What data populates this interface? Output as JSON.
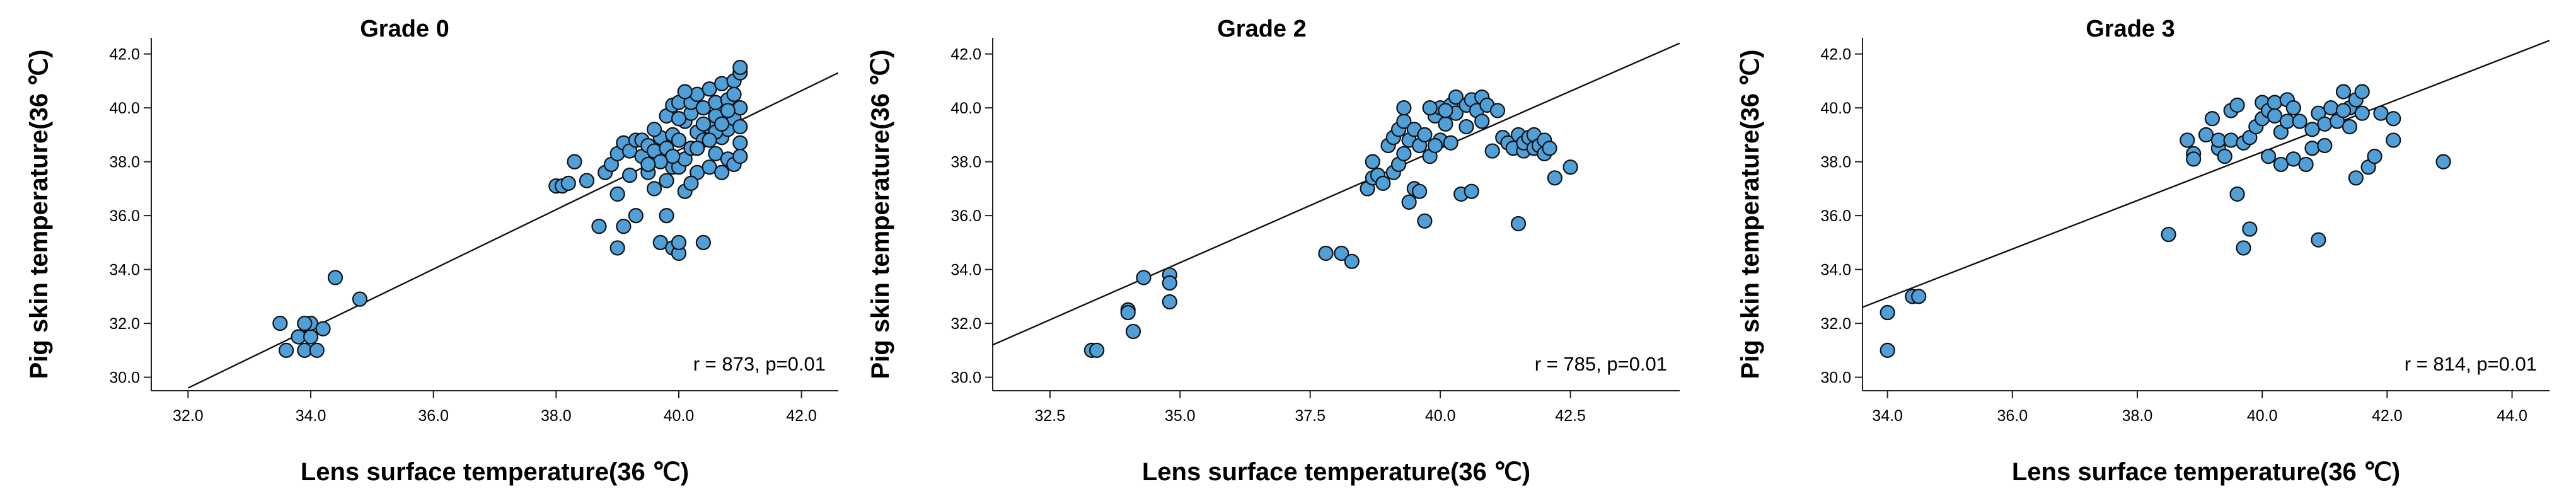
{
  "colors": {
    "marker": "#4f9fd8",
    "marker_edge": "#111111",
    "fit_line": "#111111",
    "axis": "#222222"
  },
  "chart_data": [
    {
      "type": "scatter",
      "title": "Grade 0",
      "xlabel": "Lens surface temperature(36 ℃)",
      "ylabel": "Pig skin temperature(36 ℃)",
      "xlim": [
        31.4,
        42.6
      ],
      "ylim": [
        29.5,
        42.6
      ],
      "xticks": [
        "32.0",
        "34.0",
        "36.0",
        "38.0",
        "40.0",
        "42.0"
      ],
      "yticks": [
        "30.0",
        "32.0",
        "34.0",
        "36.0",
        "38.0",
        "40.0",
        "42.0"
      ],
      "annotation": "r = 873, p=0.01",
      "fit_line": [
        [
          32.0,
          29.6
        ],
        [
          42.6,
          41.3
        ]
      ],
      "points": [
        [
          33.5,
          32.0
        ],
        [
          33.6,
          31.0
        ],
        [
          33.8,
          31.5
        ],
        [
          33.9,
          31.0
        ],
        [
          34.0,
          31.5
        ],
        [
          34.0,
          32.0
        ],
        [
          34.1,
          31.0
        ],
        [
          34.2,
          31.8
        ],
        [
          33.9,
          32.0
        ],
        [
          34.4,
          33.7
        ],
        [
          34.8,
          32.9
        ],
        [
          38.0,
          37.1
        ],
        [
          38.1,
          37.1
        ],
        [
          38.2,
          37.2
        ],
        [
          38.3,
          38.0
        ],
        [
          38.5,
          37.3
        ],
        [
          38.7,
          35.6
        ],
        [
          38.8,
          37.6
        ],
        [
          38.9,
          37.9
        ],
        [
          39.0,
          38.3
        ],
        [
          39.0,
          36.8
        ],
        [
          39.0,
          34.8
        ],
        [
          39.1,
          38.7
        ],
        [
          39.1,
          35.6
        ],
        [
          39.2,
          37.5
        ],
        [
          39.2,
          38.4
        ],
        [
          39.3,
          38.8
        ],
        [
          39.3,
          36.0
        ],
        [
          39.4,
          38.2
        ],
        [
          39.4,
          38.8
        ],
        [
          39.5,
          37.6
        ],
        [
          39.5,
          38.6
        ],
        [
          39.6,
          37.0
        ],
        [
          39.6,
          38.4
        ],
        [
          39.7,
          38.9
        ],
        [
          39.7,
          35.0
        ],
        [
          39.8,
          36.0
        ],
        [
          39.8,
          37.3
        ],
        [
          39.8,
          39.7
        ],
        [
          39.8,
          38.5
        ],
        [
          39.9,
          34.8
        ],
        [
          39.9,
          40.1
        ],
        [
          39.9,
          37.8
        ],
        [
          39.9,
          39.0
        ],
        [
          40.0,
          34.6
        ],
        [
          40.0,
          35.0
        ],
        [
          40.0,
          37.8
        ],
        [
          40.0,
          38.8
        ],
        [
          40.0,
          40.2
        ],
        [
          40.1,
          39.5
        ],
        [
          40.1,
          38.1
        ],
        [
          40.1,
          36.9
        ],
        [
          40.2,
          39.8
        ],
        [
          40.2,
          38.5
        ],
        [
          40.2,
          40.2
        ],
        [
          40.3,
          37.6
        ],
        [
          40.3,
          39.1
        ],
        [
          40.3,
          40.5
        ],
        [
          40.4,
          38.8
        ],
        [
          40.4,
          40.0
        ],
        [
          40.4,
          35.0
        ],
        [
          40.5,
          39.3
        ],
        [
          40.5,
          37.8
        ],
        [
          40.5,
          40.7
        ],
        [
          40.6,
          38.3
        ],
        [
          40.6,
          39.7
        ],
        [
          40.6,
          40.2
        ],
        [
          40.7,
          38.9
        ],
        [
          40.7,
          37.6
        ],
        [
          40.7,
          40.9
        ],
        [
          40.8,
          39.2
        ],
        [
          40.8,
          40.3
        ],
        [
          40.8,
          38.1
        ],
        [
          40.9,
          39.6
        ],
        [
          40.9,
          41.0
        ],
        [
          40.9,
          37.9
        ],
        [
          41.0,
          38.7
        ],
        [
          41.0,
          40.0
        ],
        [
          41.0,
          39.3
        ],
        [
          41.0,
          41.3
        ],
        [
          41.0,
          41.5
        ],
        [
          41.0,
          38.2
        ],
        [
          40.3,
          38.5
        ],
        [
          40.6,
          39.1
        ],
        [
          40.2,
          37.2
        ],
        [
          39.6,
          39.2
        ],
        [
          40.8,
          39.9
        ],
        [
          40.4,
          39.4
        ],
        [
          39.9,
          38.2
        ],
        [
          40.5,
          38.8
        ],
        [
          40.1,
          40.6
        ],
        [
          39.7,
          38.0
        ],
        [
          40.7,
          39.4
        ],
        [
          40.9,
          40.5
        ],
        [
          40.0,
          39.6
        ],
        [
          39.5,
          37.9
        ]
      ]
    },
    {
      "type": "scatter",
      "title": "Grade 2",
      "xlabel": "Lens surface temperature(36 ℃)",
      "ylabel": "Pig skin temperature(36 ℃)",
      "xlim": [
        31.4,
        44.6
      ],
      "ylim": [
        29.5,
        42.6
      ],
      "xticks": [
        "32.5",
        "35.0",
        "37.5",
        "40.0",
        "42.5"
      ],
      "yticks": [
        "30.0",
        "32.0",
        "34.0",
        "36.0",
        "38.0",
        "40.0",
        "42.0"
      ],
      "annotation": "r = 785, p=0.01",
      "fit_line": [
        [
          31.4,
          31.2
        ],
        [
          44.6,
          42.4
        ]
      ],
      "points": [
        [
          33.3,
          31.0
        ],
        [
          33.4,
          31.0
        ],
        [
          34.0,
          32.5
        ],
        [
          34.0,
          32.4
        ],
        [
          34.1,
          31.7
        ],
        [
          34.3,
          33.7
        ],
        [
          34.8,
          33.8
        ],
        [
          34.8,
          33.5
        ],
        [
          34.8,
          32.8
        ],
        [
          37.8,
          34.6
        ],
        [
          38.1,
          34.6
        ],
        [
          38.3,
          34.3
        ],
        [
          38.6,
          37.0
        ],
        [
          38.7,
          37.4
        ],
        [
          38.7,
          38.0
        ],
        [
          38.8,
          37.5
        ],
        [
          38.9,
          37.2
        ],
        [
          39.0,
          38.6
        ],
        [
          39.1,
          38.9
        ],
        [
          39.1,
          37.6
        ],
        [
          39.2,
          39.2
        ],
        [
          39.2,
          37.9
        ],
        [
          39.3,
          39.5
        ],
        [
          39.3,
          40.0
        ],
        [
          39.3,
          38.3
        ],
        [
          39.4,
          36.5
        ],
        [
          39.4,
          38.8
        ],
        [
          39.5,
          39.2
        ],
        [
          39.5,
          37.0
        ],
        [
          39.6,
          38.6
        ],
        [
          39.6,
          36.9
        ],
        [
          39.7,
          35.8
        ],
        [
          39.7,
          39.0
        ],
        [
          39.8,
          38.2
        ],
        [
          39.9,
          39.7
        ],
        [
          40.0,
          38.8
        ],
        [
          40.0,
          40.0
        ],
        [
          40.1,
          39.4
        ],
        [
          40.2,
          40.1
        ],
        [
          40.2,
          38.7
        ],
        [
          40.3,
          40.4
        ],
        [
          40.3,
          39.8
        ],
        [
          40.4,
          36.8
        ],
        [
          40.5,
          40.1
        ],
        [
          40.5,
          39.3
        ],
        [
          40.6,
          40.3
        ],
        [
          40.6,
          36.9
        ],
        [
          40.7,
          39.9
        ],
        [
          40.8,
          40.4
        ],
        [
          40.8,
          39.5
        ],
        [
          40.9,
          40.1
        ],
        [
          41.0,
          38.4
        ],
        [
          41.1,
          39.9
        ],
        [
          41.2,
          38.9
        ],
        [
          41.3,
          38.7
        ],
        [
          41.4,
          38.5
        ],
        [
          41.5,
          35.7
        ],
        [
          41.5,
          39.0
        ],
        [
          41.6,
          38.4
        ],
        [
          41.6,
          38.7
        ],
        [
          41.7,
          38.9
        ],
        [
          41.8,
          39.0
        ],
        [
          41.8,
          38.5
        ],
        [
          41.9,
          38.6
        ],
        [
          42.0,
          38.8
        ],
        [
          42.0,
          38.3
        ],
        [
          42.1,
          38.5
        ],
        [
          42.2,
          37.4
        ],
        [
          42.5,
          37.8
        ],
        [
          39.8,
          40.0
        ],
        [
          40.1,
          39.9
        ],
        [
          39.9,
          38.6
        ]
      ]
    },
    {
      "type": "scatter",
      "title": "Grade 3",
      "xlabel": "Lens surface temperature(36 ℃)",
      "ylabel": "Pig skin temperature(36 ℃)",
      "xlim": [
        33.6,
        44.6
      ],
      "ylim": [
        29.5,
        42.6
      ],
      "xticks": [
        "34.0",
        "36.0",
        "38.0",
        "40.0",
        "42.0",
        "44.0"
      ],
      "yticks": [
        "30.0",
        "32.0",
        "34.0",
        "36.0",
        "38.0",
        "40.0",
        "42.0"
      ],
      "annotation": "r = 814, p=0.01",
      "fit_line": [
        [
          33.6,
          32.6
        ],
        [
          44.6,
          42.5
        ]
      ],
      "points": [
        [
          34.0,
          32.4
        ],
        [
          34.0,
          31.0
        ],
        [
          34.4,
          33.0
        ],
        [
          34.5,
          33.0
        ],
        [
          38.5,
          35.3
        ],
        [
          38.8,
          38.8
        ],
        [
          38.9,
          38.3
        ],
        [
          38.9,
          38.1
        ],
        [
          39.1,
          39.0
        ],
        [
          39.2,
          39.6
        ],
        [
          39.3,
          38.5
        ],
        [
          39.3,
          38.8
        ],
        [
          39.4,
          38.2
        ],
        [
          39.5,
          39.9
        ],
        [
          39.5,
          38.8
        ],
        [
          39.6,
          40.1
        ],
        [
          39.6,
          36.8
        ],
        [
          39.7,
          34.8
        ],
        [
          39.7,
          38.7
        ],
        [
          39.8,
          35.5
        ],
        [
          39.8,
          38.9
        ],
        [
          39.9,
          39.3
        ],
        [
          40.0,
          39.6
        ],
        [
          40.0,
          40.2
        ],
        [
          40.1,
          38.2
        ],
        [
          40.1,
          39.9
        ],
        [
          40.2,
          40.2
        ],
        [
          40.2,
          39.7
        ],
        [
          40.3,
          37.9
        ],
        [
          40.3,
          39.1
        ],
        [
          40.4,
          40.3
        ],
        [
          40.4,
          39.5
        ],
        [
          40.5,
          38.1
        ],
        [
          40.5,
          40.0
        ],
        [
          40.6,
          39.5
        ],
        [
          40.7,
          37.9
        ],
        [
          40.8,
          38.5
        ],
        [
          40.9,
          35.1
        ],
        [
          40.9,
          39.8
        ],
        [
          41.0,
          38.6
        ],
        [
          41.0,
          39.4
        ],
        [
          41.1,
          40.0
        ],
        [
          41.2,
          39.5
        ],
        [
          41.3,
          40.6
        ],
        [
          41.4,
          39.3
        ],
        [
          41.4,
          40.0
        ],
        [
          41.5,
          40.3
        ],
        [
          41.5,
          37.4
        ],
        [
          41.6,
          39.8
        ],
        [
          41.6,
          40.6
        ],
        [
          41.7,
          37.8
        ],
        [
          41.8,
          38.2
        ],
        [
          41.9,
          39.8
        ],
        [
          42.1,
          39.6
        ],
        [
          42.1,
          38.8
        ],
        [
          42.9,
          38.0
        ],
        [
          41.3,
          39.9
        ],
        [
          40.8,
          39.2
        ]
      ]
    }
  ]
}
